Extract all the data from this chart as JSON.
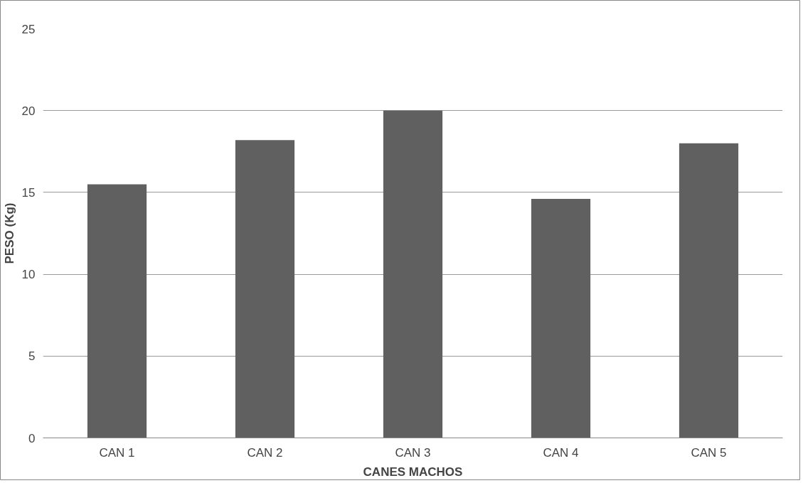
{
  "chart_data": {
    "type": "bar",
    "xlabel": "CANES MACHOS",
    "ylabel": "PESO (Kg)",
    "categories": [
      "CAN 1",
      "CAN 2",
      "CAN 3",
      "CAN 4",
      "CAN 5"
    ],
    "values": [
      15.5,
      18.2,
      20.0,
      14.6,
      18.0
    ],
    "color": "#606060",
    "ylim": [
      0,
      25
    ],
    "yticks": [
      0,
      5,
      10,
      15,
      20,
      25
    ],
    "grid": "y"
  }
}
